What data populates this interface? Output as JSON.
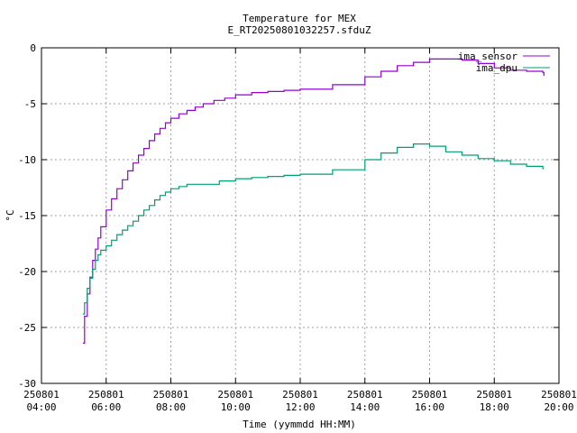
{
  "chart_data": {
    "type": "line",
    "title": "Temperature for MEX",
    "subtitle": "E_RT20250801032257.sfduZ",
    "xlabel": "Time (yymmdd HH:MM)",
    "ylabel": "°C",
    "xlim": [
      "250801 04:00",
      "250801 20:00"
    ],
    "ylim": [
      -30,
      0
    ],
    "grid": true,
    "legend_position": "top-right",
    "x_ticks": [
      {
        "date": "250801",
        "time": "04:00"
      },
      {
        "date": "250801",
        "time": "06:00"
      },
      {
        "date": "250801",
        "time": "08:00"
      },
      {
        "date": "250801",
        "time": "10:00"
      },
      {
        "date": "250801",
        "time": "12:00"
      },
      {
        "date": "250801",
        "time": "14:00"
      },
      {
        "date": "250801",
        "time": "16:00"
      },
      {
        "date": "250801",
        "time": "18:00"
      },
      {
        "date": "250801",
        "time": "20:00"
      }
    ],
    "y_ticks": [
      "0",
      "-5",
      "-10",
      "-15",
      "-20",
      "-25",
      "-30"
    ],
    "series": [
      {
        "name": "ima_sensor",
        "color": "#9400d3",
        "x": [
          "250801 05:17",
          "250801 05:20",
          "250801 05:25",
          "250801 05:30",
          "250801 05:35",
          "250801 05:40",
          "250801 05:45",
          "250801 05:50",
          "250801 06:00",
          "250801 06:10",
          "250801 06:20",
          "250801 06:30",
          "250801 06:40",
          "250801 06:50",
          "250801 07:00",
          "250801 07:10",
          "250801 07:20",
          "250801 07:30",
          "250801 07:40",
          "250801 07:50",
          "250801 08:00",
          "250801 08:15",
          "250801 08:30",
          "250801 08:45",
          "250801 09:00",
          "250801 09:20",
          "250801 09:40",
          "250801 10:00",
          "250801 10:30",
          "250801 11:00",
          "250801 11:30",
          "250801 12:00",
          "250801 13:00",
          "250801 14:00",
          "250801 14:30",
          "250801 15:00",
          "250801 15:30",
          "250801 16:00",
          "250801 16:30",
          "250801 17:00",
          "250801 17:30",
          "250801 18:00",
          "250801 18:30",
          "250801 19:00",
          "250801 19:30",
          "250801 19:32"
        ],
        "y": [
          -26.4,
          -24.0,
          -22.0,
          -20.5,
          -19.0,
          -18.0,
          -17.0,
          -16.0,
          -14.5,
          -13.5,
          -12.6,
          -11.8,
          -11.0,
          -10.3,
          -9.6,
          -9.0,
          -8.3,
          -7.7,
          -7.2,
          -6.7,
          -6.3,
          -5.9,
          -5.6,
          -5.3,
          -5.0,
          -4.7,
          -4.5,
          -4.2,
          -4.0,
          -3.9,
          -3.8,
          -3.7,
          -3.3,
          -2.6,
          -2.1,
          -1.6,
          -1.3,
          -1.0,
          -1.0,
          -1.1,
          -1.4,
          -1.8,
          -2.0,
          -2.1,
          -2.2,
          -2.5
        ]
      },
      {
        "name": "ima_dpu",
        "color": "#009e73",
        "x": [
          "250801 05:17",
          "250801 05:20",
          "250801 05:25",
          "250801 05:30",
          "250801 05:35",
          "250801 05:40",
          "250801 05:45",
          "250801 05:50",
          "250801 06:00",
          "250801 06:10",
          "250801 06:20",
          "250801 06:30",
          "250801 06:40",
          "250801 06:50",
          "250801 07:00",
          "250801 07:10",
          "250801 07:20",
          "250801 07:30",
          "250801 07:40",
          "250801 07:50",
          "250801 08:00",
          "250801 08:15",
          "250801 08:30",
          "250801 09:00",
          "250801 09:30",
          "250801 10:00",
          "250801 10:30",
          "250801 11:00",
          "250801 11:30",
          "250801 12:00",
          "250801 13:00",
          "250801 14:00",
          "250801 14:30",
          "250801 15:00",
          "250801 15:30",
          "250801 16:00",
          "250801 16:30",
          "250801 17:00",
          "250801 17:30",
          "250801 18:00",
          "250801 18:30",
          "250801 19:00",
          "250801 19:30",
          "250801 19:32"
        ],
        "y": [
          -23.8,
          -22.8,
          -21.5,
          -20.6,
          -19.8,
          -19.0,
          -18.5,
          -18.1,
          -17.7,
          -17.2,
          -16.7,
          -16.3,
          -15.9,
          -15.5,
          -15.0,
          -14.5,
          -14.1,
          -13.6,
          -13.2,
          -12.9,
          -12.6,
          -12.4,
          -12.2,
          -12.2,
          -11.9,
          -11.7,
          -11.6,
          -11.5,
          -11.4,
          -11.3,
          -10.9,
          -10.0,
          -9.4,
          -8.9,
          -8.6,
          -8.8,
          -9.3,
          -9.6,
          -9.9,
          -10.1,
          -10.4,
          -10.6,
          -10.8,
          -10.8
        ]
      }
    ]
  }
}
